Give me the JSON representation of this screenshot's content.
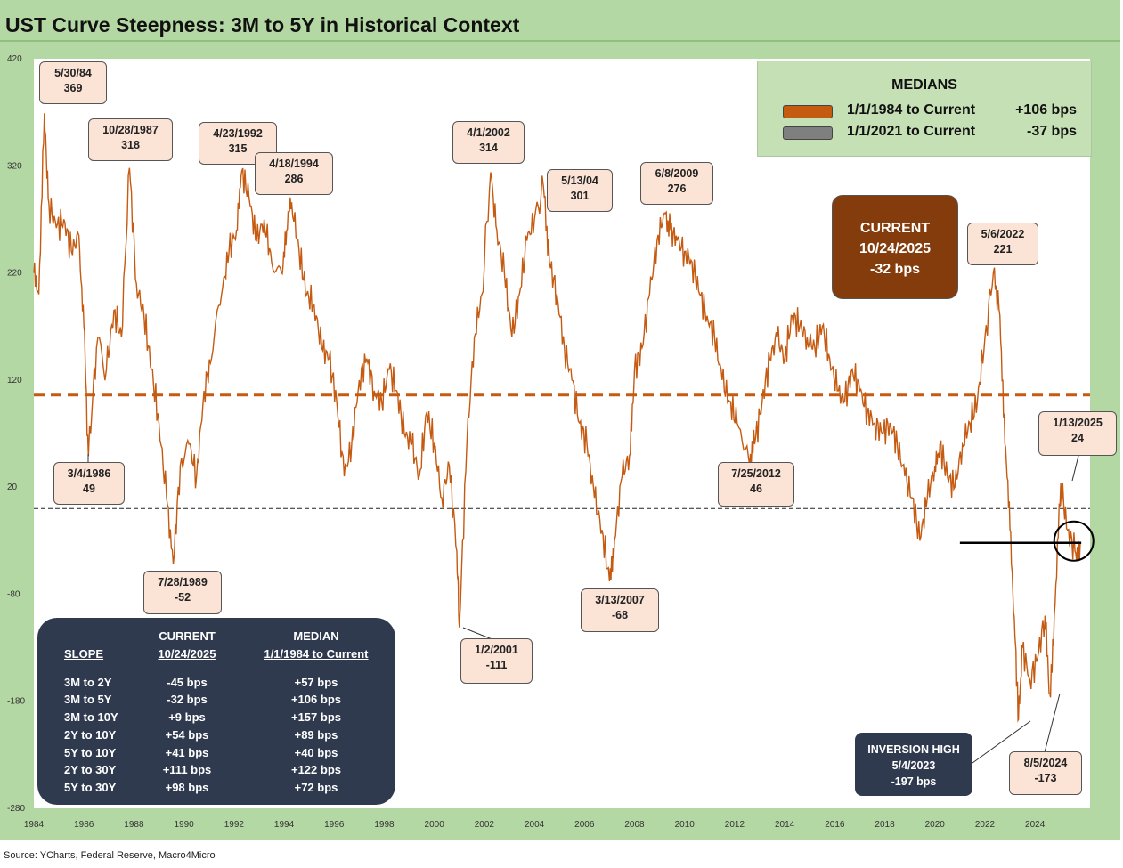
{
  "title": "UST Curve Steepness: 3M to 5Y in Historical Context",
  "source": "Source: YCharts, Federal Reserve, Macro4Micro",
  "colors": {
    "series": "#c55a11",
    "median_line": "#c55a11",
    "zero_line": "#222222",
    "current_box": "#843c0c",
    "dark_box": "#2f3a4f",
    "callout_fill": "#fbe3d6",
    "frame": "#b4d8a4"
  },
  "medians": {
    "title": "MEDIANS",
    "rows": [
      {
        "label": "1/1/1984 to Current",
        "value": "+106 bps",
        "color": "#c55a11"
      },
      {
        "label": "1/1/2021 to Current",
        "value": "-37 bps",
        "color": "#7f7f7f"
      }
    ]
  },
  "current_box": {
    "line1": "CURRENT",
    "line2": "10/24/2025",
    "line3": "-32 bps"
  },
  "inversion_box": {
    "line1": "INVERSION HIGH",
    "line2": "5/4/2023",
    "line3": "-197 bps"
  },
  "callouts": [
    {
      "id": "c1984",
      "date": "5/30/84",
      "value": "369"
    },
    {
      "id": "c1987",
      "date": "10/28/1987",
      "value": "318"
    },
    {
      "id": "c1992",
      "date": "4/23/1992",
      "value": "315"
    },
    {
      "id": "c1994",
      "date": "4/18/1994",
      "value": "286"
    },
    {
      "id": "c2002",
      "date": "4/1/2002",
      "value": "314"
    },
    {
      "id": "c2004",
      "date": "5/13/04",
      "value": "301"
    },
    {
      "id": "c2009",
      "date": "6/8/2009",
      "value": "276"
    },
    {
      "id": "c2022",
      "date": "5/6/2022",
      "value": "221"
    },
    {
      "id": "c2025",
      "date": "1/13/2025",
      "value": "24"
    },
    {
      "id": "c1986",
      "date": "3/4/1986",
      "value": "49"
    },
    {
      "id": "c2012",
      "date": "7/25/2012",
      "value": "46"
    },
    {
      "id": "c1989",
      "date": "7/28/1989",
      "value": "-52"
    },
    {
      "id": "c2007",
      "date": "3/13/2007",
      "value": "-68"
    },
    {
      "id": "c2001",
      "date": "1/2/2001",
      "value": "-111"
    },
    {
      "id": "c2024",
      "date": "8/5/2024",
      "value": "-173"
    }
  ],
  "slope_table": {
    "headers": {
      "slope": "SLOPE",
      "current_top": "CURRENT",
      "current_bottom": "10/24/2025",
      "median_top": "MEDIAN",
      "median_bottom": "1/1/1984 to Current"
    },
    "rows": [
      {
        "slope": "3M to 2Y",
        "current": "-45 bps",
        "median": "+57 bps"
      },
      {
        "slope": "3M to 5Y",
        "current": "-32 bps",
        "median": "+106 bps"
      },
      {
        "slope": "3M to 10Y",
        "current": "+9 bps",
        "median": "+157 bps"
      },
      {
        "slope": "2Y to 10Y",
        "current": "+54 bps",
        "median": "+89 bps"
      },
      {
        "slope": "5Y to 10Y",
        "current": "+41 bps",
        "median": "+40 bps"
      },
      {
        "slope": "2Y to 30Y",
        "current": "+111 bps",
        "median": "+122 bps"
      },
      {
        "slope": "5Y to 30Y",
        "current": "+98 bps",
        "median": "+72 bps"
      }
    ]
  },
  "chart_data": {
    "type": "line",
    "title": "UST Curve Steepness: 3M to 5Y in Historical Context",
    "xlabel": "",
    "ylabel": "",
    "xlim": [
      1984,
      2026.2
    ],
    "ylim": [
      -280,
      420
    ],
    "x_ticks": [
      "1984",
      "1986",
      "1988",
      "1990",
      "1992",
      "1994",
      "1996",
      "1998",
      "2000",
      "2002",
      "2004",
      "2006",
      "2008",
      "2010",
      "2012",
      "2014",
      "2016",
      "2018",
      "2020",
      "2022",
      "2024"
    ],
    "y_ticks": [
      "420",
      "320",
      "220",
      "120",
      "20",
      "-80",
      "-180",
      "-280"
    ],
    "median_line": 106,
    "zero_line": 0,
    "current_level": -32,
    "series": [
      {
        "x": [
          1984.0,
          1984.2,
          1984.42,
          1984.6,
          1984.9,
          1985.2,
          1985.5,
          1985.8,
          1986.0,
          1986.18,
          1986.5,
          1986.9,
          1987.2,
          1987.5,
          1987.82,
          1988.1,
          1988.4,
          1988.7,
          1989.0,
          1989.3,
          1989.57,
          1989.85,
          1990.2,
          1990.5,
          1990.8,
          1991.1,
          1991.5,
          1991.8,
          1992.1,
          1992.31,
          1992.6,
          1992.9,
          1993.2,
          1993.5,
          1993.9,
          1994.1,
          1994.3,
          1994.6,
          1994.9,
          1995.2,
          1995.5,
          1995.8,
          1996.1,
          1996.4,
          1996.7,
          1997.0,
          1997.3,
          1997.6,
          1997.9,
          1998.2,
          1998.5,
          1998.8,
          1999.1,
          1999.4,
          1999.7,
          2000.0,
          2000.3,
          2000.6,
          2000.9,
          2001.0,
          2001.3,
          2001.6,
          2001.9,
          2002.25,
          2002.5,
          2002.8,
          2003.1,
          2003.4,
          2003.7,
          2004.0,
          2004.36,
          2004.6,
          2004.9,
          2005.2,
          2005.5,
          2005.8,
          2006.1,
          2006.4,
          2006.7,
          2007.0,
          2007.2,
          2007.5,
          2007.8,
          2008.0,
          2008.3,
          2008.6,
          2008.9,
          2009.2,
          2009.44,
          2009.7,
          2010.0,
          2010.3,
          2010.6,
          2010.9,
          2011.2,
          2011.5,
          2011.8,
          2012.1,
          2012.56,
          2012.8,
          2013.1,
          2013.4,
          2013.7,
          2014.0,
          2014.3,
          2014.6,
          2014.9,
          2015.2,
          2015.5,
          2015.8,
          2016.1,
          2016.4,
          2016.7,
          2017.0,
          2017.3,
          2017.6,
          2017.9,
          2018.2,
          2018.5,
          2018.8,
          2019.1,
          2019.4,
          2019.7,
          2020.0,
          2020.2,
          2020.5,
          2020.8,
          2021.1,
          2021.4,
          2021.7,
          2022.0,
          2022.34,
          2022.6,
          2022.8,
          2023.0,
          2023.2,
          2023.34,
          2023.5,
          2023.8,
          2024.1,
          2024.4,
          2024.59,
          2024.8,
          2025.03,
          2025.3,
          2025.6,
          2025.81
        ],
        "y": [
          220,
          200,
          369,
          285,
          262,
          270,
          240,
          255,
          170,
          49,
          150,
          130,
          185,
          160,
          318,
          210,
          180,
          130,
          80,
          10,
          -52,
          40,
          60,
          30,
          110,
          140,
          200,
          240,
          260,
          315,
          290,
          250,
          270,
          230,
          220,
          260,
          286,
          240,
          200,
          190,
          150,
          140,
          100,
          30,
          60,
          120,
          140,
          110,
          100,
          130,
          110,
          70,
          60,
          30,
          90,
          60,
          10,
          40,
          -40,
          -111,
          60,
          160,
          200,
          314,
          260,
          220,
          160,
          200,
          250,
          270,
          301,
          230,
          200,
          150,
          120,
          80,
          60,
          10,
          -20,
          -68,
          -30,
          30,
          50,
          130,
          150,
          200,
          250,
          276,
          260,
          250,
          240,
          230,
          200,
          180,
          160,
          120,
          100,
          80,
          46,
          60,
          100,
          140,
          160,
          140,
          180,
          170,
          160,
          150,
          170,
          140,
          110,
          100,
          130,
          110,
          90,
          80,
          70,
          80,
          60,
          30,
          10,
          -30,
          10,
          40,
          60,
          30,
          20,
          60,
          80,
          100,
          160,
          221,
          180,
          60,
          -20,
          -120,
          -197,
          -130,
          -160,
          -140,
          -100,
          -173,
          -90,
          24,
          -20,
          -40,
          -32
        ]
      }
    ]
  }
}
